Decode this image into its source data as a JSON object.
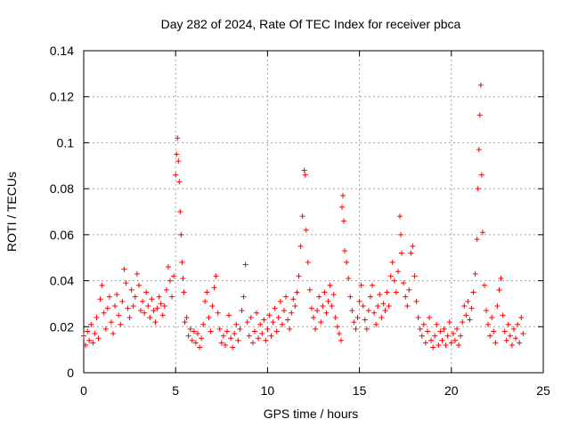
{
  "chart_data": {
    "type": "scatter",
    "title": "Day 282 of 2024, Rate Of TEC Index for receiver pbca",
    "xlabel": "GPS time / hours",
    "ylabel": "ROTI / TECUs",
    "xlim": [
      0,
      25
    ],
    "ylim": [
      0,
      0.14
    ],
    "xticks": [
      0,
      5,
      10,
      15,
      20,
      25
    ],
    "xtick_labels": [
      "0",
      "5",
      "10",
      "15",
      "20",
      "25"
    ],
    "yticks": [
      0,
      0.02,
      0.04,
      0.06,
      0.08,
      0.1,
      0.12,
      0.14
    ],
    "ytick_labels": [
      "0",
      "0.02",
      "0.04",
      "0.06",
      "0.08",
      "0.1",
      "0.12",
      "0.14"
    ],
    "grid": true,
    "marker": "+",
    "color": "#ff0000",
    "series": [
      {
        "points": [
          [
            0.0,
            0.016
          ],
          [
            0.1,
            0.012
          ],
          [
            0.2,
            0.018
          ],
          [
            0.3,
            0.014
          ],
          [
            0.4,
            0.021
          ],
          [
            0.5,
            0.013
          ],
          [
            0.6,
            0.017
          ],
          [
            0.7,
            0.024
          ],
          [
            0.8,
            0.015
          ],
          [
            0.9,
            0.032
          ],
          [
            1.0,
            0.038
          ],
          [
            1.1,
            0.026
          ],
          [
            1.2,
            0.019
          ],
          [
            1.3,
            0.028
          ],
          [
            1.4,
            0.033
          ],
          [
            1.5,
            0.022
          ],
          [
            1.6,
            0.017
          ],
          [
            1.7,
            0.029
          ],
          [
            1.8,
            0.034
          ],
          [
            1.9,
            0.025
          ],
          [
            2.0,
            0.021
          ],
          [
            2.1,
            0.031
          ],
          [
            2.2,
            0.045
          ],
          [
            2.3,
            0.039
          ],
          [
            2.4,
            0.028
          ],
          [
            2.5,
            0.024
          ],
          [
            2.6,
            0.036
          ],
          [
            2.7,
            0.029
          ],
          [
            2.8,
            0.033
          ],
          [
            2.9,
            0.043
          ],
          [
            3.0,
            0.038
          ],
          [
            3.1,
            0.027
          ],
          [
            3.2,
            0.031
          ],
          [
            3.3,
            0.026
          ],
          [
            3.4,
            0.035
          ],
          [
            3.5,
            0.029
          ],
          [
            3.6,
            0.024
          ],
          [
            3.7,
            0.032
          ],
          [
            3.8,
            0.027
          ],
          [
            3.9,
            0.022
          ],
          [
            4.0,
            0.028
          ],
          [
            4.1,
            0.033
          ],
          [
            4.2,
            0.03
          ],
          [
            4.3,
            0.025
          ],
          [
            4.4,
            0.029
          ],
          [
            4.5,
            0.036
          ],
          [
            4.6,
            0.046
          ],
          [
            4.7,
            0.04
          ],
          [
            4.8,
            0.033
          ],
          [
            4.9,
            0.042
          ],
          [
            5.0,
            0.086
          ],
          [
            5.05,
            0.095
          ],
          [
            5.1,
            0.102
          ],
          [
            5.15,
            0.092
          ],
          [
            5.2,
            0.083
          ],
          [
            5.25,
            0.07
          ],
          [
            5.3,
            0.06
          ],
          [
            5.35,
            0.048
          ],
          [
            5.4,
            0.041
          ],
          [
            5.45,
            0.035
          ],
          [
            5.5,
            0.022
          ],
          [
            5.6,
            0.024
          ],
          [
            5.7,
            0.016
          ],
          [
            5.8,
            0.019
          ],
          [
            5.9,
            0.014
          ],
          [
            6.0,
            0.018
          ],
          [
            6.1,
            0.013
          ],
          [
            6.2,
            0.017
          ],
          [
            6.3,
            0.011
          ],
          [
            6.4,
            0.015
          ],
          [
            6.5,
            0.021
          ],
          [
            6.6,
            0.031
          ],
          [
            6.7,
            0.035
          ],
          [
            6.8,
            0.024
          ],
          [
            6.9,
            0.018
          ],
          [
            7.0,
            0.029
          ],
          [
            7.1,
            0.037
          ],
          [
            7.2,
            0.042
          ],
          [
            7.3,
            0.026
          ],
          [
            7.4,
            0.019
          ],
          [
            7.5,
            0.013
          ],
          [
            7.6,
            0.016
          ],
          [
            7.7,
            0.012
          ],
          [
            7.8,
            0.018
          ],
          [
            7.9,
            0.025
          ],
          [
            8.0,
            0.015
          ],
          [
            8.1,
            0.011
          ],
          [
            8.2,
            0.017
          ],
          [
            8.3,
            0.021
          ],
          [
            8.4,
            0.014
          ],
          [
            8.5,
            0.019
          ],
          [
            8.6,
            0.027
          ],
          [
            8.7,
            0.033
          ],
          [
            8.8,
            0.047
          ],
          [
            8.9,
            0.022
          ],
          [
            9.0,
            0.016
          ],
          [
            9.1,
            0.024
          ],
          [
            9.2,
            0.013
          ],
          [
            9.3,
            0.018
          ],
          [
            9.4,
            0.026
          ],
          [
            9.5,
            0.015
          ],
          [
            9.6,
            0.021
          ],
          [
            9.7,
            0.017
          ],
          [
            9.8,
            0.023
          ],
          [
            9.9,
            0.014
          ],
          [
            10.0,
            0.019
          ],
          [
            10.1,
            0.025
          ],
          [
            10.2,
            0.016
          ],
          [
            10.3,
            0.022
          ],
          [
            10.4,
            0.028
          ],
          [
            10.5,
            0.018
          ],
          [
            10.6,
            0.024
          ],
          [
            10.7,
            0.031
          ],
          [
            10.8,
            0.021
          ],
          [
            10.9,
            0.027
          ],
          [
            11.0,
            0.033
          ],
          [
            11.1,
            0.023
          ],
          [
            11.2,
            0.019
          ],
          [
            11.3,
            0.026
          ],
          [
            11.4,
            0.032
          ],
          [
            11.5,
            0.029
          ],
          [
            11.6,
            0.035
          ],
          [
            11.7,
            0.042
          ],
          [
            11.8,
            0.055
          ],
          [
            11.9,
            0.068
          ],
          [
            12.0,
            0.088
          ],
          [
            12.05,
            0.086
          ],
          [
            12.1,
            0.062
          ],
          [
            12.2,
            0.048
          ],
          [
            12.3,
            0.036
          ],
          [
            12.4,
            0.028
          ],
          [
            12.5,
            0.024
          ],
          [
            12.6,
            0.019
          ],
          [
            12.7,
            0.027
          ],
          [
            12.8,
            0.033
          ],
          [
            12.9,
            0.022
          ],
          [
            13.0,
            0.029
          ],
          [
            13.1,
            0.035
          ],
          [
            13.2,
            0.026
          ],
          [
            13.3,
            0.031
          ],
          [
            13.4,
            0.038
          ],
          [
            13.5,
            0.029
          ],
          [
            13.6,
            0.034
          ],
          [
            13.7,
            0.024
          ],
          [
            13.8,
            0.02
          ],
          [
            13.9,
            0.017
          ],
          [
            14.0,
            0.014
          ],
          [
            14.05,
            0.072
          ],
          [
            14.1,
            0.077
          ],
          [
            14.15,
            0.066
          ],
          [
            14.2,
            0.053
          ],
          [
            14.3,
            0.048
          ],
          [
            14.4,
            0.041
          ],
          [
            14.5,
            0.033
          ],
          [
            14.6,
            0.027
          ],
          [
            14.7,
            0.022
          ],
          [
            14.8,
            0.019
          ],
          [
            14.9,
            0.024
          ],
          [
            15.0,
            0.031
          ],
          [
            15.1,
            0.038
          ],
          [
            15.2,
            0.029
          ],
          [
            15.3,
            0.023
          ],
          [
            15.4,
            0.019
          ],
          [
            15.5,
            0.027
          ],
          [
            15.6,
            0.033
          ],
          [
            15.7,
            0.038
          ],
          [
            15.8,
            0.026
          ],
          [
            15.9,
            0.021
          ],
          [
            16.0,
            0.029
          ],
          [
            16.1,
            0.034
          ],
          [
            16.2,
            0.024
          ],
          [
            16.3,
            0.03
          ],
          [
            16.4,
            0.027
          ],
          [
            16.5,
            0.035
          ],
          [
            16.6,
            0.029
          ],
          [
            16.7,
            0.042
          ],
          [
            16.8,
            0.048
          ],
          [
            16.9,
            0.04
          ],
          [
            17.0,
            0.035
          ],
          [
            17.1,
            0.044
          ],
          [
            17.2,
            0.068
          ],
          [
            17.25,
            0.06
          ],
          [
            17.3,
            0.052
          ],
          [
            17.4,
            0.039
          ],
          [
            17.5,
            0.033
          ],
          [
            17.6,
            0.029
          ],
          [
            17.7,
            0.036
          ],
          [
            17.8,
            0.052
          ],
          [
            17.9,
            0.055
          ],
          [
            18.0,
            0.042
          ],
          [
            18.1,
            0.031
          ],
          [
            18.2,
            0.024
          ],
          [
            18.3,
            0.019
          ],
          [
            18.4,
            0.016
          ],
          [
            18.5,
            0.021
          ],
          [
            18.6,
            0.013
          ],
          [
            18.7,
            0.018
          ],
          [
            18.8,
            0.024
          ],
          [
            18.9,
            0.014
          ],
          [
            19.0,
            0.011
          ],
          [
            19.1,
            0.016
          ],
          [
            19.2,
            0.021
          ],
          [
            19.3,
            0.012
          ],
          [
            19.4,
            0.018
          ],
          [
            19.5,
            0.014
          ],
          [
            19.6,
            0.019
          ],
          [
            19.7,
            0.012
          ],
          [
            19.8,
            0.016
          ],
          [
            19.9,
            0.022
          ],
          [
            20.0,
            0.013
          ],
          [
            20.1,
            0.017
          ],
          [
            20.2,
            0.014
          ],
          [
            20.3,
            0.019
          ],
          [
            20.4,
            0.012
          ],
          [
            20.5,
            0.016
          ],
          [
            20.6,
            0.022
          ],
          [
            20.7,
            0.029
          ],
          [
            20.8,
            0.025
          ],
          [
            20.9,
            0.031
          ],
          [
            21.0,
            0.023
          ],
          [
            21.1,
            0.028
          ],
          [
            21.2,
            0.035
          ],
          [
            21.3,
            0.043
          ],
          [
            21.4,
            0.058
          ],
          [
            21.45,
            0.08
          ],
          [
            21.5,
            0.097
          ],
          [
            21.55,
            0.112
          ],
          [
            21.6,
            0.125
          ],
          [
            21.65,
            0.086
          ],
          [
            21.7,
            0.061
          ],
          [
            21.8,
            0.038
          ],
          [
            21.9,
            0.027
          ],
          [
            22.0,
            0.021
          ],
          [
            22.1,
            0.016
          ],
          [
            22.2,
            0.024
          ],
          [
            22.3,
            0.018
          ],
          [
            22.4,
            0.013
          ],
          [
            22.5,
            0.029
          ],
          [
            22.6,
            0.036
          ],
          [
            22.7,
            0.041
          ],
          [
            22.8,
            0.025
          ],
          [
            22.9,
            0.018
          ],
          [
            23.0,
            0.014
          ],
          [
            23.1,
            0.021
          ],
          [
            23.2,
            0.016
          ],
          [
            23.3,
            0.012
          ],
          [
            23.4,
            0.019
          ],
          [
            23.5,
            0.015
          ],
          [
            23.6,
            0.021
          ],
          [
            23.7,
            0.013
          ],
          [
            23.8,
            0.024
          ],
          [
            23.9,
            0.017
          ]
        ]
      }
    ]
  }
}
